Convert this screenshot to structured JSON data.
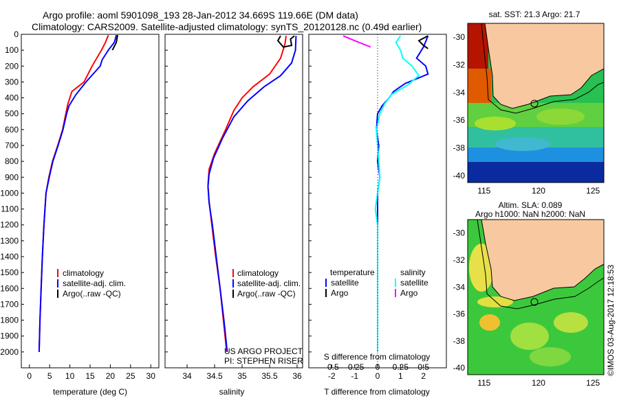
{
  "header": {
    "title_line1": "Argo profile: aoml 5901098_193 28-Jan-2012 34.669S 119.66E (DM data)",
    "title_line2": "Climatology: CARS2009. Satellite-adjusted climatology: synTS_20120128.nc (0.49d earlier)"
  },
  "colors": {
    "climatology": "#ff0000",
    "satellite": "#0000ff",
    "argo": "#000000",
    "sal_satellite": "#00ffff",
    "sal_argo": "#ff00ff"
  },
  "chart_data": [
    {
      "type": "line",
      "name": "temperature-profile",
      "xlabel": "temperature (deg C)",
      "xlim": [
        -2,
        32
      ],
      "ylim": [
        0,
        2100
      ],
      "xticks": [
        0,
        5,
        10,
        15,
        20,
        25,
        30
      ],
      "yticks": [
        0,
        100,
        200,
        300,
        400,
        500,
        600,
        700,
        800,
        900,
        1000,
        1100,
        1200,
        1300,
        1400,
        1500,
        1600,
        1700,
        1800,
        1900,
        2000
      ],
      "legend": [
        "climatology",
        "satellite-adj. clim.",
        "Argo(..raw -QC)"
      ],
      "series": [
        {
          "name": "climatology",
          "color": "#ff0000",
          "points": [
            [
              19.5,
              5
            ],
            [
              18.8,
              50
            ],
            [
              17.8,
              100
            ],
            [
              15.5,
              200
            ],
            [
              13.5,
              300
            ],
            [
              10.5,
              360
            ],
            [
              9.5,
              440
            ],
            [
              9.0,
              500
            ],
            [
              8.2,
              600
            ],
            [
              7.0,
              700
            ],
            [
              5.7,
              800
            ],
            [
              4.8,
              900
            ],
            [
              4.1,
              1000
            ],
            [
              3.6,
              1200
            ],
            [
              3.2,
              1400
            ],
            [
              2.9,
              1600
            ],
            [
              2.6,
              1800
            ],
            [
              2.4,
              2000
            ]
          ]
        },
        {
          "name": "satellite-adj. clim.",
          "color": "#0000ff",
          "points": [
            [
              21.5,
              5
            ],
            [
              21.0,
              50
            ],
            [
              19.5,
              100
            ],
            [
              18.0,
              160
            ],
            [
              17.5,
              200
            ],
            [
              14.0,
              300
            ],
            [
              11.5,
              380
            ],
            [
              9.8,
              450
            ],
            [
              9.2,
              500
            ],
            [
              8.3,
              600
            ],
            [
              7.1,
              700
            ],
            [
              5.8,
              800
            ],
            [
              4.9,
              900
            ],
            [
              4.1,
              1000
            ],
            [
              3.6,
              1200
            ],
            [
              3.2,
              1400
            ],
            [
              2.9,
              1600
            ],
            [
              2.6,
              1800
            ],
            [
              2.4,
              2000
            ]
          ]
        },
        {
          "name": "Argo(..raw -QC)",
          "color": "#000000",
          "points": [
            [
              21.8,
              5
            ],
            [
              21.5,
              50
            ],
            [
              20.5,
              100
            ]
          ]
        }
      ]
    },
    {
      "type": "line",
      "name": "salinity-profile",
      "xlabel": "salinity",
      "xlim": [
        33.6,
        36.1
      ],
      "ylim": [
        0,
        2100
      ],
      "xticks": [
        34,
        34.5,
        35,
        35.5,
        36
      ],
      "legend": [
        "climatology",
        "satellite-adj. clim.",
        "Argo(..raw -QC)"
      ],
      "annotation": [
        "US ARGO PROJECT",
        "PI: STEPHEN RISER"
      ],
      "series": [
        {
          "name": "climatology",
          "color": "#ff0000",
          "points": [
            [
              35.8,
              10
            ],
            [
              35.78,
              60
            ],
            [
              35.7,
              150
            ],
            [
              35.5,
              250
            ],
            [
              35.2,
              330
            ],
            [
              35.0,
              400
            ],
            [
              34.85,
              480
            ],
            [
              34.7,
              600
            ],
            [
              34.5,
              750
            ],
            [
              34.4,
              850
            ],
            [
              34.38,
              950
            ],
            [
              34.4,
              1050
            ],
            [
              34.45,
              1200
            ],
            [
              34.52,
              1400
            ],
            [
              34.6,
              1600
            ],
            [
              34.66,
              1800
            ],
            [
              34.72,
              2000
            ]
          ]
        },
        {
          "name": "satellite-adj. clim.",
          "color": "#0000ff",
          "points": [
            [
              35.98,
              10
            ],
            [
              35.97,
              100
            ],
            [
              35.9,
              180
            ],
            [
              35.7,
              260
            ],
            [
              35.4,
              330
            ],
            [
              35.1,
              420
            ],
            [
              34.85,
              520
            ],
            [
              34.65,
              650
            ],
            [
              34.48,
              780
            ],
            [
              34.4,
              880
            ],
            [
              34.38,
              960
            ],
            [
              34.4,
              1060
            ],
            [
              34.46,
              1200
            ],
            [
              34.53,
              1400
            ],
            [
              34.6,
              1600
            ],
            [
              34.67,
              1800
            ],
            [
              34.73,
              2000
            ]
          ]
        },
        {
          "name": "Argo(..raw -QC)",
          "color": "#000000",
          "points": [
            [
              35.7,
              10
            ],
            [
              35.65,
              40
            ],
            [
              35.75,
              80
            ],
            [
              35.9,
              70
            ],
            [
              35.88,
              30
            ],
            [
              35.95,
              10
            ]
          ]
        }
      ]
    },
    {
      "type": "line",
      "name": "difference-profile",
      "xlabel": "T difference from climatology",
      "xlabel_top": "S difference from climatology",
      "xlim": [
        -3,
        3
      ],
      "xticks": [
        -2,
        -1,
        0,
        1,
        2
      ],
      "xticks_top": [
        "-0.5",
        "-0.25",
        "0",
        "0.25",
        "0.5"
      ],
      "legend": {
        "temperature_heading": "temperature",
        "salinity_heading": "salinity",
        "temp_entries": [
          "satellite",
          "Argo"
        ],
        "sal_entries": [
          "satellite",
          "Argo"
        ]
      },
      "series": [
        {
          "name": "temperature satellite",
          "color": "#0000ff",
          "points": [
            [
              2.2,
              10
            ],
            [
              2.0,
              80
            ],
            [
              1.7,
              150
            ],
            [
              2.1,
              200
            ],
            [
              2.2,
              250
            ],
            [
              1.2,
              310
            ],
            [
              0.7,
              360
            ],
            [
              0.5,
              400
            ],
            [
              0.2,
              450
            ],
            [
              0,
              500
            ],
            [
              -0.05,
              600
            ],
            [
              0.05,
              700
            ],
            [
              0,
              800
            ],
            [
              0.1,
              900
            ],
            [
              0,
              1000
            ],
            [
              0,
              1200
            ],
            [
              0,
              1500
            ],
            [
              0,
              1800
            ],
            [
              0,
              2000
            ]
          ]
        },
        {
          "name": "temperature Argo",
          "color": "#000000",
          "points": [
            [
              2.2,
              10
            ],
            [
              1.8,
              40
            ],
            [
              2.0,
              70
            ],
            [
              2.2,
              90
            ]
          ]
        },
        {
          "name": "salinity satellite",
          "color": "#00ffff",
          "points": [
            [
              1.0,
              10
            ],
            [
              0.8,
              50
            ],
            [
              1.0,
              100
            ],
            [
              1.1,
              150
            ],
            [
              1.5,
              200
            ],
            [
              1.8,
              260
            ],
            [
              1.3,
              320
            ],
            [
              0.6,
              380
            ],
            [
              0.3,
              440
            ],
            [
              0.1,
              500
            ],
            [
              -0.05,
              600
            ],
            [
              0,
              700
            ],
            [
              0.05,
              800
            ],
            [
              0.1,
              900
            ],
            [
              0,
              1000
            ],
            [
              -0.1,
              1100
            ],
            [
              0,
              1200
            ],
            [
              0,
              1500
            ],
            [
              0,
              1800
            ],
            [
              0,
              2000
            ]
          ]
        },
        {
          "name": "salinity Argo",
          "color": "#ff00ff",
          "points": [
            [
              -1.5,
              10
            ],
            [
              -1.0,
              40
            ],
            [
              -0.3,
              80
            ]
          ]
        }
      ]
    },
    {
      "type": "heatmap",
      "name": "sst-map",
      "title": "sat. SST: 21.3 Argo: 21.7",
      "xlim": [
        113.5,
        126
      ],
      "ylim": [
        -40.5,
        -29
      ],
      "xticks": [
        115,
        120,
        125
      ],
      "yticks": [
        -30,
        -32,
        -34,
        -36,
        -38,
        -40
      ],
      "marker": [
        119.66,
        -34.669
      ]
    },
    {
      "type": "heatmap",
      "name": "sla-map",
      "title_line1": "Altim. SLA: 0.089",
      "title_line2": "Argo h1000: NaN h2000: NaN",
      "xlim": [
        113.5,
        126
      ],
      "ylim": [
        -40.5,
        -29
      ],
      "xticks": [
        115,
        120,
        125
      ],
      "yticks": [
        -30,
        -32,
        -34,
        -36,
        -38,
        -40
      ],
      "marker": [
        119.66,
        -34.669
      ]
    }
  ],
  "footer": {
    "credit": "©IMOS 03-Aug-2017 12:18:53"
  }
}
